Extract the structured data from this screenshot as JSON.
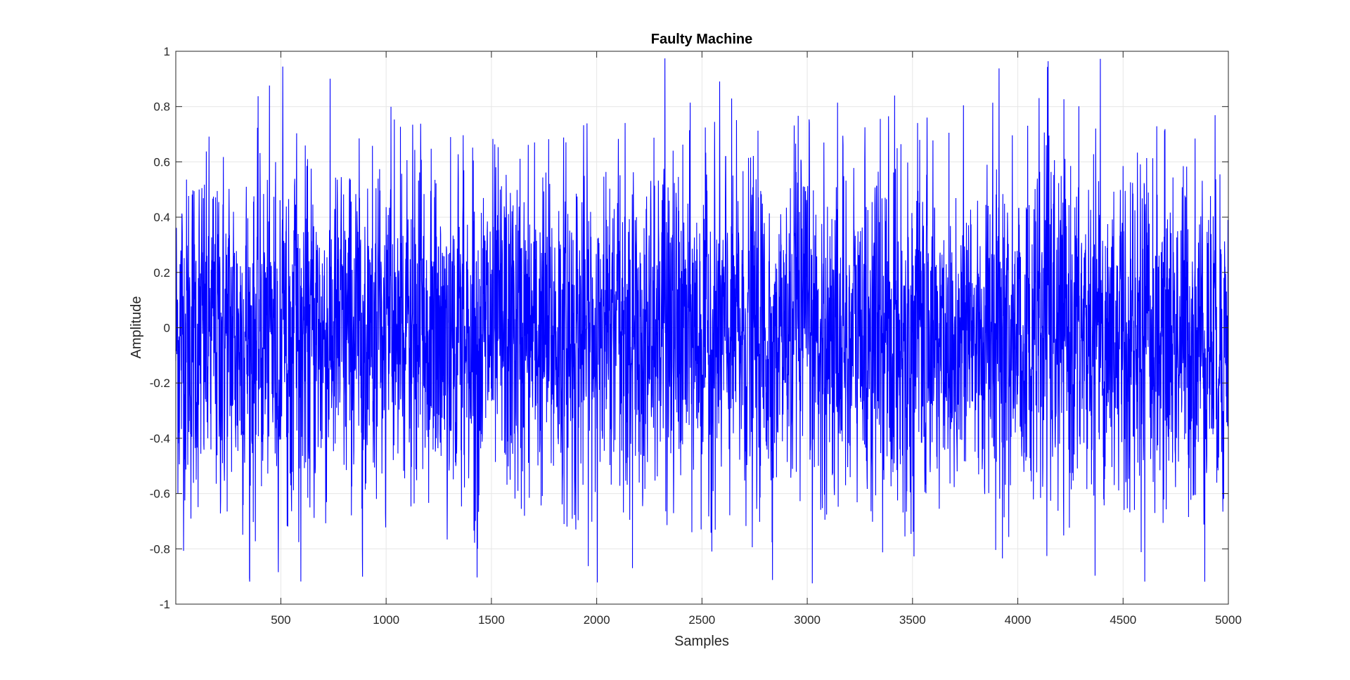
{
  "chart_data": {
    "type": "line",
    "title": "Faulty Machine",
    "xlabel": "Samples",
    "ylabel": "Amplitude",
    "xlim": [
      1,
      5000
    ],
    "ylim": [
      -1,
      1
    ],
    "xticks": [
      500,
      1000,
      1500,
      2000,
      2500,
      3000,
      3500,
      4000,
      4500,
      5000
    ],
    "xtick_labels": [
      "500",
      "1000",
      "1500",
      "2000",
      "2500",
      "3000",
      "3500",
      "4000",
      "4500",
      "5000"
    ],
    "yticks": [
      -1,
      -0.8,
      -0.6,
      -0.4,
      -0.2,
      0,
      0.2,
      0.4,
      0.6,
      0.8,
      1
    ],
    "ytick_labels": [
      "-1",
      "-0.8",
      "-0.6",
      "-0.4",
      "-0.2",
      "0",
      "0.2",
      "0.4",
      "0.6",
      "0.8",
      "1"
    ],
    "grid": true,
    "colors": {
      "line": "#0000ff",
      "grid": "#e6e6e6",
      "axes": "#262626"
    },
    "series": [
      {
        "x_start": 1,
        "x_end": 5000,
        "count": 5000,
        "mean": -0.03,
        "std": 0.3,
        "min": -0.93,
        "max": 1.0,
        "description_note": ""
      }
    ]
  }
}
